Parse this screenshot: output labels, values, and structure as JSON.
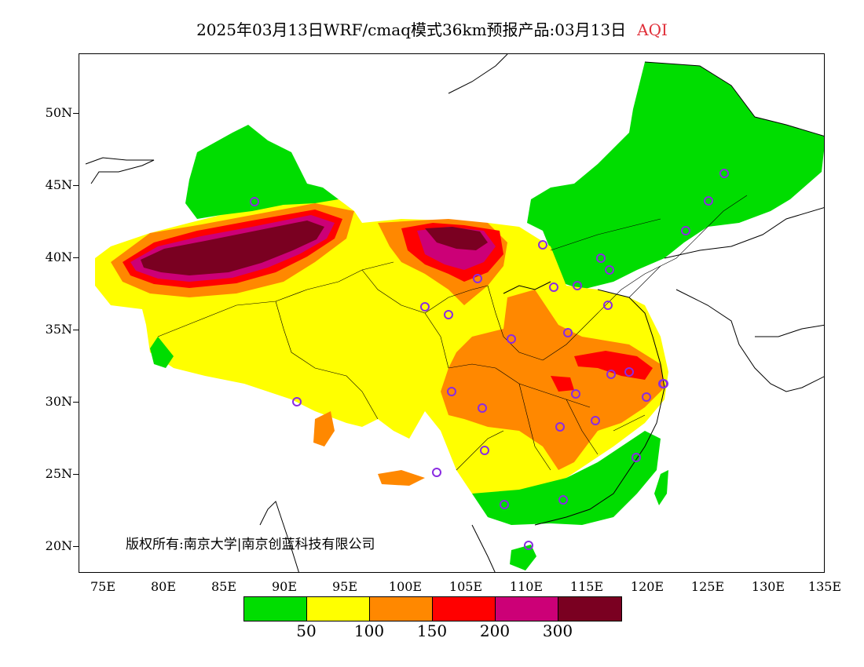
{
  "header": {
    "title": "2025年03月13日WRF/cmaq模式36km预报产品:03月13日",
    "pollutant": "AQI",
    "pollutant_color": "#e0303a"
  },
  "map": {
    "lat_labels": [
      "50N",
      "45N",
      "40N",
      "35N",
      "30N",
      "25N",
      "20N"
    ],
    "lon_labels": [
      "75E",
      "80E",
      "85E",
      "90E",
      "95E",
      "100E",
      "105E",
      "110E",
      "115E",
      "120E",
      "125E",
      "130E",
      "135E"
    ],
    "station_count_note": "",
    "copyright": "版权所有:南京大学|南京创蓝科技有限公司"
  },
  "legend": {
    "colors": [
      "#00dd00",
      "#ffff00",
      "#ff8800",
      "#ff0000",
      "#cc0077",
      "#7a0021"
    ],
    "labels": [
      "50",
      "100",
      "150",
      "200",
      "300"
    ]
  }
}
